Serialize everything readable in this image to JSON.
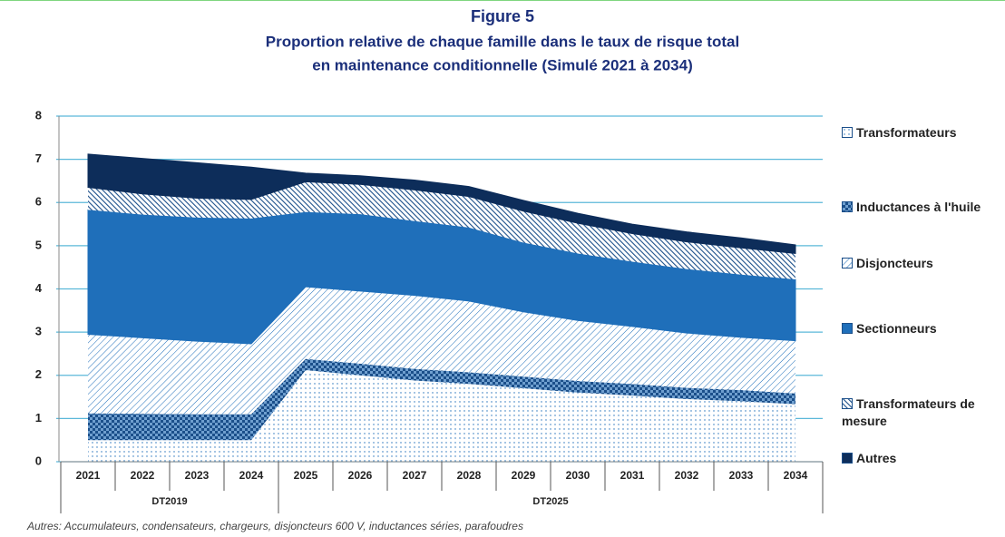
{
  "chart_data": {
    "type": "stacked-area",
    "title": "Figure 5",
    "subtitle": [
      "Proportion relative de chaque famille dans le taux de risque total",
      "en maintenance conditionnelle (Simulé 2021 à 2034)"
    ],
    "categories": [
      "2021",
      "2022",
      "2023",
      "2024",
      "2025",
      "2026",
      "2027",
      "2028",
      "2029",
      "2030",
      "2031",
      "2032",
      "2033",
      "2034"
    ],
    "groups": [
      {
        "label": "DT2019",
        "from": "2021",
        "to": "2024"
      },
      {
        "label": "DT2025",
        "from": "2025",
        "to": "2034"
      }
    ],
    "series": [
      {
        "name": "Transformateurs",
        "color": "#1f6fba",
        "pattern": "dots",
        "values": [
          0.5,
          0.5,
          0.5,
          0.5,
          2.12,
          2.0,
          1.88,
          1.8,
          1.7,
          1.6,
          1.53,
          1.45,
          1.4,
          1.33
        ]
      },
      {
        "name": "Inductances à l'huile",
        "color": "#1b4f8a",
        "pattern": "checker",
        "values": [
          0.62,
          0.61,
          0.6,
          0.6,
          0.26,
          0.27,
          0.27,
          0.27,
          0.27,
          0.27,
          0.27,
          0.26,
          0.26,
          0.25
        ]
      },
      {
        "name": "Disjoncteurs",
        "color": "#1f6fba",
        "pattern": "hatch",
        "values": [
          1.83,
          1.76,
          1.69,
          1.63,
          1.67,
          1.68,
          1.7,
          1.65,
          1.5,
          1.4,
          1.33,
          1.27,
          1.22,
          1.22
        ]
      },
      {
        "name": "Sectionneurs",
        "color": "#1f6fba",
        "pattern": "solid",
        "values": [
          2.88,
          2.85,
          2.86,
          2.9,
          1.73,
          1.78,
          1.72,
          1.7,
          1.6,
          1.55,
          1.5,
          1.48,
          1.45,
          1.42
        ]
      },
      {
        "name": "Transformateurs de mesure",
        "color": "#1b4f8a",
        "pattern": "dense-hatch",
        "values": [
          0.52,
          0.48,
          0.45,
          0.44,
          0.7,
          0.69,
          0.72,
          0.72,
          0.73,
          0.7,
          0.65,
          0.63,
          0.62,
          0.6
        ]
      },
      {
        "name": "Autres",
        "color": "#0d2d5a",
        "pattern": "solid",
        "values": [
          0.77,
          0.82,
          0.82,
          0.75,
          0.2,
          0.2,
          0.23,
          0.23,
          0.25,
          0.23,
          0.22,
          0.23,
          0.23,
          0.2
        ]
      }
    ],
    "ylim": [
      0,
      8
    ],
    "yticks": [
      0,
      1,
      2,
      3,
      4,
      5,
      6,
      7,
      8
    ],
    "grid": true,
    "grid_color": "#5bb8d9",
    "legend": "right",
    "footnote": "Autres: Accumulateurs, condensateurs, chargeurs, disjoncteurs 600 V, inductances séries, parafoudres"
  }
}
